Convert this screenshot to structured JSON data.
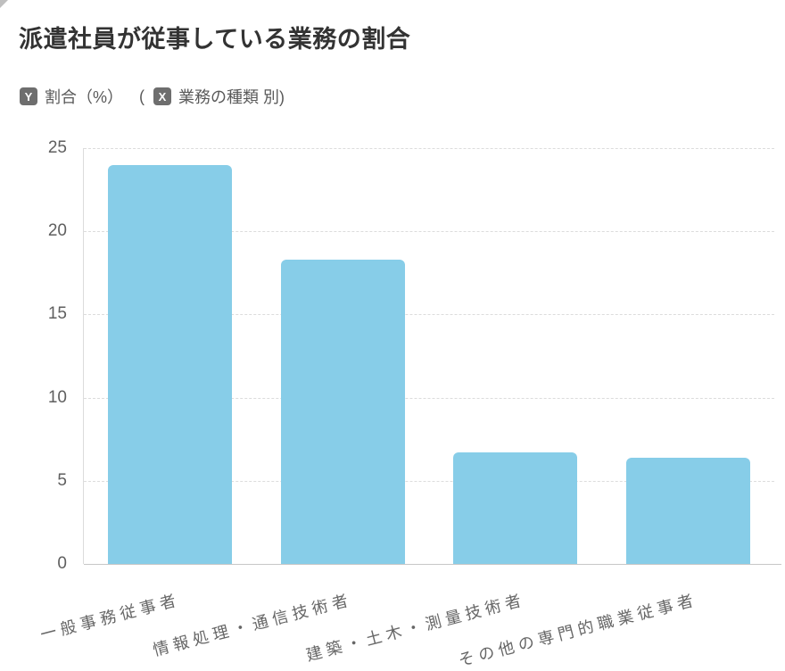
{
  "title": "派遣社員が従事している業務の割合",
  "legend": {
    "y_badge": "Y",
    "y_label": "割合（%）",
    "separator": "(",
    "x_badge": "X",
    "x_label": "業務の種類 別)"
  },
  "chart_data": {
    "type": "bar",
    "title": "派遣社員が従事している業務の割合",
    "categories": [
      "一般事務従事者",
      "情報処理・通信技術者",
      "建築・土木・測量技術者",
      "その他の専門的職業従事者"
    ],
    "values": [
      24.0,
      18.3,
      6.7,
      6.4
    ],
    "ylabel": "割合（%）",
    "xlabel": "業務の種類",
    "ylim": [
      0,
      25
    ],
    "yticks": [
      0,
      5,
      10,
      15,
      20,
      25
    ],
    "bar_color": "#87cde8",
    "grid": "horizontal-dashed",
    "x_label_rotation_deg": -14.5,
    "legend_position": "none"
  }
}
